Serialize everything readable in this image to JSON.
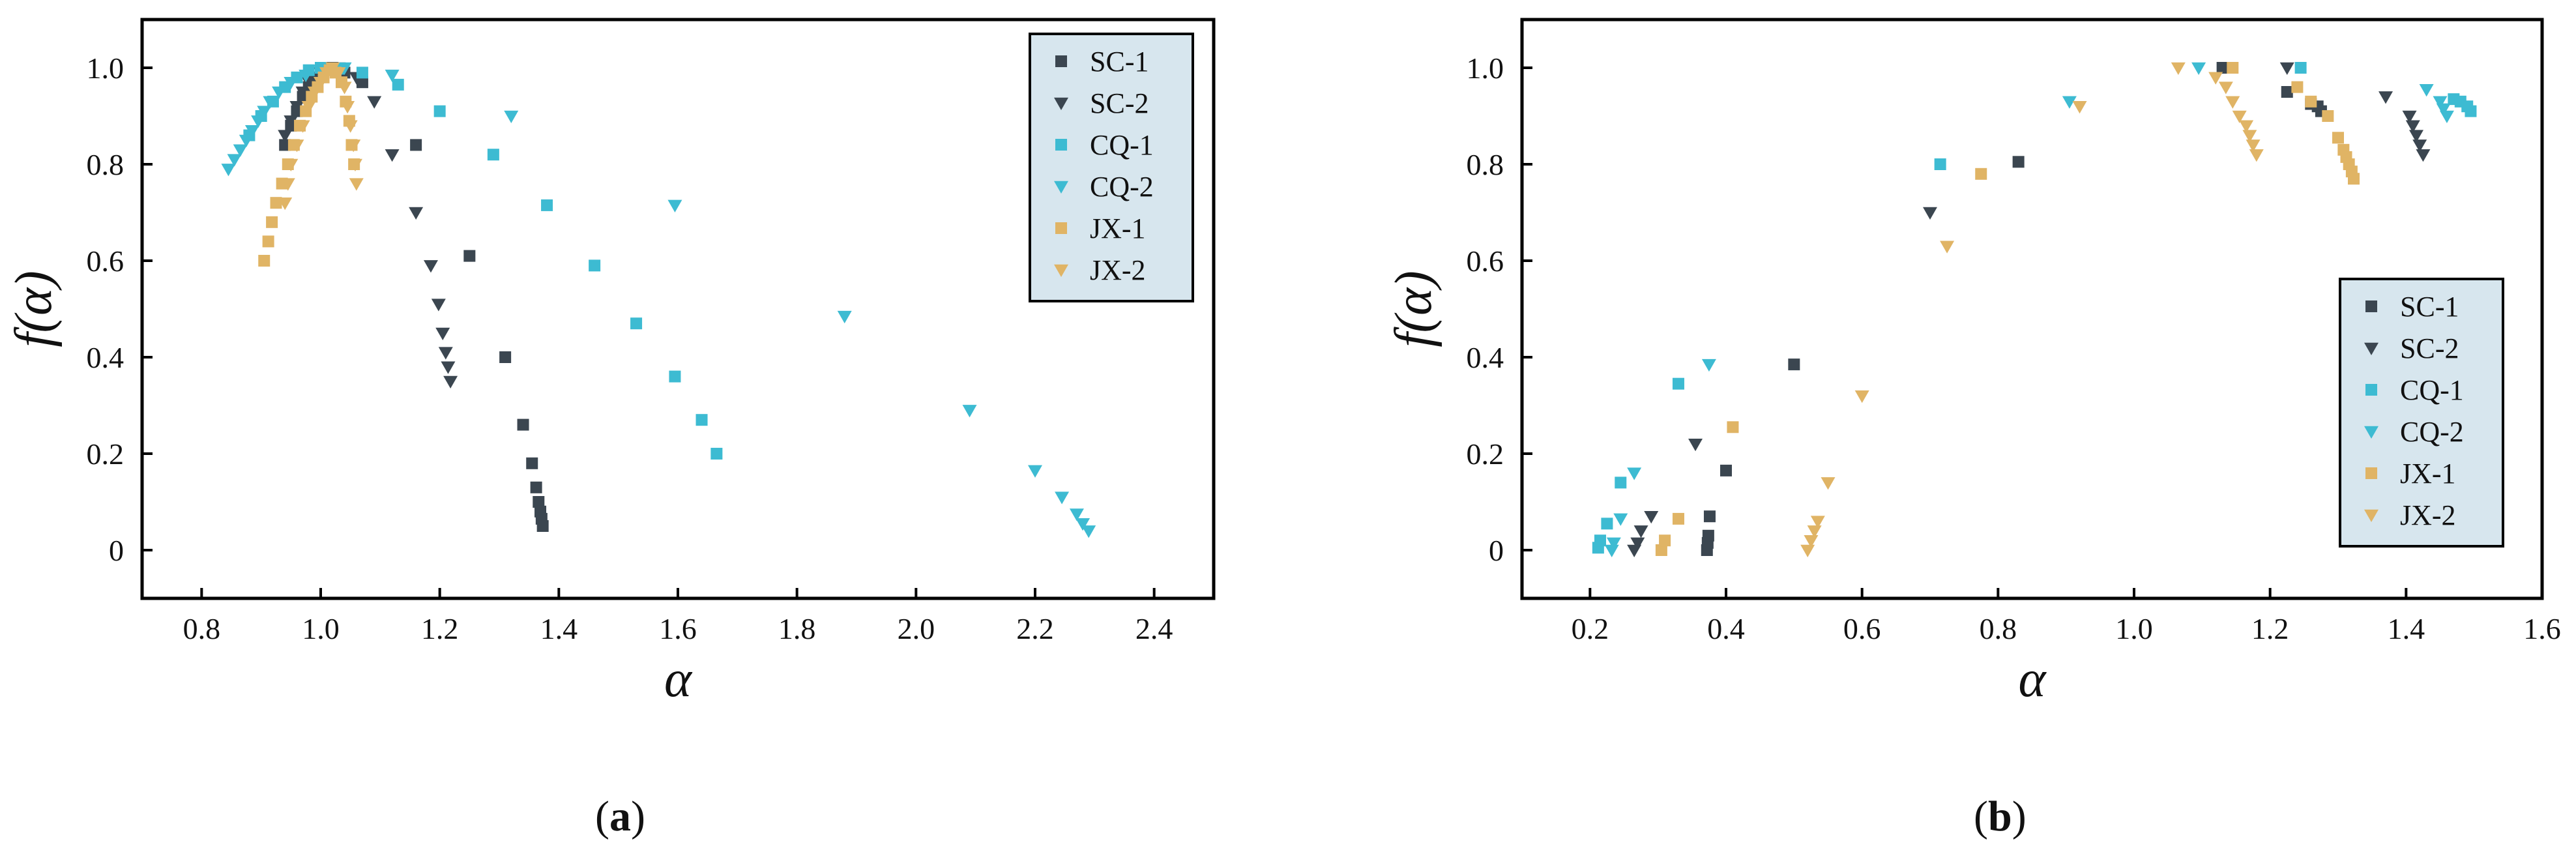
{
  "colors": {
    "SC": "#3b4650",
    "CQ": "#3dbbd2",
    "JX": "#e0b465",
    "legend_bg": "#d7e6ee",
    "frame": "#000000"
  },
  "chart_data": [
    {
      "panel": "(a)",
      "panel_letter": "a",
      "type": "scatter",
      "xlabel": "α",
      "ylabel": "f(α)",
      "xlim": [
        0.7,
        2.5
      ],
      "ylim": [
        -0.1,
        1.1
      ],
      "xticks": [
        "0.8",
        "1.0",
        "1.2",
        "1.4",
        "1.6",
        "1.8",
        "2.0",
        "2.2",
        "2.4"
      ],
      "yticks": [
        "0",
        "0.2",
        "0.4",
        "0.6",
        "0.8",
        "1.0"
      ],
      "legend_position": "top-right",
      "grid": false,
      "series": [
        {
          "name": "SC-1",
          "marker": "square",
          "color_key": "SC",
          "points": [
            [
              0.94,
              0.84
            ],
            [
              0.95,
              0.88
            ],
            [
              0.96,
              0.91
            ],
            [
              0.97,
              0.94
            ],
            [
              0.98,
              0.96
            ],
            [
              0.99,
              0.98
            ],
            [
              1.0,
              0.99
            ],
            [
              1.02,
              1.0
            ],
            [
              1.04,
              0.99
            ],
            [
              1.07,
              0.97
            ],
            [
              1.16,
              0.84
            ],
            [
              1.25,
              0.61
            ],
            [
              1.31,
              0.4
            ],
            [
              1.34,
              0.26
            ],
            [
              1.355,
              0.18
            ],
            [
              1.362,
              0.13
            ],
            [
              1.366,
              0.1
            ],
            [
              1.369,
              0.08
            ],
            [
              1.371,
              0.065
            ],
            [
              1.373,
              0.05
            ]
          ]
        },
        {
          "name": "SC-2",
          "marker": "triangle-down",
          "color_key": "SC",
          "points": [
            [
              0.94,
              0.86
            ],
            [
              0.95,
              0.89
            ],
            [
              0.96,
              0.92
            ],
            [
              0.97,
              0.95
            ],
            [
              0.98,
              0.97
            ],
            [
              1.0,
              0.99
            ],
            [
              1.03,
              1.0
            ],
            [
              1.06,
              0.98
            ],
            [
              1.09,
              0.93
            ],
            [
              1.12,
              0.82
            ],
            [
              1.16,
              0.7
            ],
            [
              1.185,
              0.59
            ],
            [
              1.198,
              0.51
            ],
            [
              1.205,
              0.45
            ],
            [
              1.21,
              0.41
            ],
            [
              1.214,
              0.38
            ],
            [
              1.218,
              0.35
            ]
          ]
        },
        {
          "name": "CQ-1",
          "marker": "square",
          "color_key": "CQ",
          "points": [
            [
              0.88,
              0.86
            ],
            [
              0.9,
              0.9
            ],
            [
              0.92,
              0.93
            ],
            [
              0.94,
              0.96
            ],
            [
              0.96,
              0.98
            ],
            [
              0.98,
              0.995
            ],
            [
              1.0,
              1.0
            ],
            [
              1.03,
              0.998
            ],
            [
              1.07,
              0.99
            ],
            [
              1.13,
              0.965
            ],
            [
              1.2,
              0.91
            ],
            [
              1.29,
              0.82
            ],
            [
              1.38,
              0.715
            ],
            [
              1.46,
              0.59
            ],
            [
              1.53,
              0.47
            ],
            [
              1.595,
              0.36
            ],
            [
              1.64,
              0.27
            ],
            [
              1.665,
              0.2
            ]
          ]
        },
        {
          "name": "CQ-2",
          "marker": "triangle-down",
          "color_key": "CQ",
          "points": [
            [
              0.845,
              0.79
            ],
            [
              0.855,
              0.81
            ],
            [
              0.865,
              0.83
            ],
            [
              0.875,
              0.85
            ],
            [
              0.885,
              0.87
            ],
            [
              0.895,
              0.89
            ],
            [
              0.905,
              0.91
            ],
            [
              0.915,
              0.93
            ],
            [
              0.93,
              0.95
            ],
            [
              0.95,
              0.97
            ],
            [
              0.975,
              0.985
            ],
            [
              1.0,
              0.995
            ],
            [
              1.04,
              1.0
            ],
            [
              1.12,
              0.985
            ],
            [
              1.32,
              0.9
            ],
            [
              1.595,
              0.715
            ],
            [
              1.88,
              0.485
            ],
            [
              2.09,
              0.29
            ],
            [
              2.2,
              0.165
            ],
            [
              2.245,
              0.11
            ],
            [
              2.27,
              0.075
            ],
            [
              2.28,
              0.055
            ],
            [
              2.29,
              0.04
            ]
          ]
        },
        {
          "name": "JX-1",
          "marker": "square",
          "color_key": "JX",
          "points": [
            [
              0.905,
              0.6
            ],
            [
              0.912,
              0.64
            ],
            [
              0.918,
              0.68
            ],
            [
              0.925,
              0.72
            ],
            [
              0.935,
              0.76
            ],
            [
              0.945,
              0.8
            ],
            [
              0.955,
              0.84
            ],
            [
              0.965,
              0.88
            ],
            [
              0.975,
              0.91
            ],
            [
              0.985,
              0.94
            ],
            [
              0.995,
              0.96
            ],
            [
              1.005,
              0.98
            ],
            [
              1.015,
              0.995
            ],
            [
              1.025,
              0.99
            ],
            [
              1.035,
              0.97
            ],
            [
              1.042,
              0.93
            ],
            [
              1.048,
              0.89
            ],
            [
              1.052,
              0.84
            ],
            [
              1.056,
              0.8
            ]
          ]
        },
        {
          "name": "JX-2",
          "marker": "triangle-down",
          "color_key": "JX",
          "points": [
            [
              0.94,
              0.72
            ],
            [
              0.945,
              0.76
            ],
            [
              0.95,
              0.8
            ],
            [
              0.96,
              0.84
            ],
            [
              0.97,
              0.88
            ],
            [
              0.98,
              0.92
            ],
            [
              0.99,
              0.95
            ],
            [
              1.0,
              0.97
            ],
            [
              1.01,
              0.99
            ],
            [
              1.02,
              1.0
            ],
            [
              1.03,
              0.99
            ],
            [
              1.04,
              0.96
            ],
            [
              1.045,
              0.92
            ],
            [
              1.05,
              0.88
            ],
            [
              1.055,
              0.84
            ],
            [
              1.058,
              0.8
            ],
            [
              1.06,
              0.76
            ]
          ]
        }
      ]
    },
    {
      "panel": "(b)",
      "panel_letter": "b",
      "type": "scatter",
      "xlabel": "α",
      "ylabel": "f(α)",
      "xlim": [
        0.1,
        1.6
      ],
      "ylim": [
        -0.1,
        1.1
      ],
      "xticks": [
        "0.2",
        "0.4",
        "0.6",
        "0.8",
        "1.0",
        "1.2",
        "1.4",
        "1.6"
      ],
      "yticks": [
        "0",
        "0.2",
        "0.4",
        "0.6",
        "0.8",
        "1.0"
      ],
      "legend_position": "lower-right",
      "grid": false,
      "series": [
        {
          "name": "SC-1",
          "marker": "square",
          "color_key": "SC",
          "points": [
            [
              0.372,
              0.0
            ],
            [
              0.373,
              0.015
            ],
            [
              0.374,
              0.03
            ],
            [
              0.376,
              0.07
            ],
            [
              0.4,
              0.165
            ],
            [
              0.5,
              0.385
            ],
            [
              0.83,
              0.805
            ],
            [
              1.13,
              1.0
            ],
            [
              1.225,
              0.95
            ],
            [
              1.26,
              0.925
            ],
            [
              1.27,
              0.92
            ],
            [
              1.275,
              0.91
            ]
          ]
        },
        {
          "name": "SC-2",
          "marker": "triangle-down",
          "color_key": "SC",
          "points": [
            [
              0.265,
              0.0
            ],
            [
              0.27,
              0.015
            ],
            [
              0.275,
              0.04
            ],
            [
              0.29,
              0.07
            ],
            [
              0.355,
              0.22
            ],
            [
              0.7,
              0.7
            ],
            [
              1.225,
              1.0
            ],
            [
              1.37,
              0.94
            ],
            [
              1.405,
              0.9
            ],
            [
              1.41,
              0.88
            ],
            [
              1.415,
              0.86
            ],
            [
              1.42,
              0.84
            ],
            [
              1.425,
              0.82
            ]
          ]
        },
        {
          "name": "CQ-1",
          "marker": "square",
          "color_key": "CQ",
          "points": [
            [
              0.212,
              0.005
            ],
            [
              0.215,
              0.02
            ],
            [
              0.225,
              0.055
            ],
            [
              0.245,
              0.14
            ],
            [
              0.33,
              0.345
            ],
            [
              0.715,
              0.8
            ],
            [
              1.245,
              1.0
            ],
            [
              1.47,
              0.935
            ],
            [
              1.48,
              0.93
            ],
            [
              1.49,
              0.92
            ],
            [
              1.495,
              0.91
            ]
          ]
        },
        {
          "name": "CQ-2",
          "marker": "triangle-down",
          "color_key": "CQ",
          "points": [
            [
              0.232,
              0.0
            ],
            [
              0.235,
              0.015
            ],
            [
              0.245,
              0.065
            ],
            [
              0.265,
              0.16
            ],
            [
              0.375,
              0.385
            ],
            [
              0.905,
              0.93
            ],
            [
              1.095,
              1.0
            ],
            [
              1.43,
              0.955
            ],
            [
              1.45,
              0.93
            ],
            [
              1.455,
              0.915
            ],
            [
              1.46,
              0.9
            ]
          ]
        },
        {
          "name": "JX-1",
          "marker": "square",
          "color_key": "JX",
          "points": [
            [
              0.305,
              0.0
            ],
            [
              0.31,
              0.02
            ],
            [
              0.33,
              0.065
            ],
            [
              0.41,
              0.255
            ],
            [
              0.775,
              0.78
            ],
            [
              1.145,
              1.0
            ],
            [
              1.24,
              0.96
            ],
            [
              1.26,
              0.93
            ],
            [
              1.285,
              0.9
            ],
            [
              1.3,
              0.855
            ],
            [
              1.308,
              0.83
            ],
            [
              1.312,
              0.815
            ],
            [
              1.316,
              0.8
            ],
            [
              1.32,
              0.785
            ],
            [
              1.323,
              0.77
            ]
          ]
        },
        {
          "name": "JX-2",
          "marker": "triangle-down",
          "color_key": "JX",
          "points": [
            [
              0.52,
              0.0
            ],
            [
              0.525,
              0.02
            ],
            [
              0.53,
              0.04
            ],
            [
              0.535,
              0.06
            ],
            [
              0.55,
              0.14
            ],
            [
              0.6,
              0.32
            ],
            [
              0.725,
              0.63
            ],
            [
              0.92,
              0.92
            ],
            [
              1.065,
              1.0
            ],
            [
              1.12,
              0.98
            ],
            [
              1.135,
              0.96
            ],
            [
              1.145,
              0.93
            ],
            [
              1.155,
              0.9
            ],
            [
              1.165,
              0.88
            ],
            [
              1.17,
              0.86
            ],
            [
              1.175,
              0.84
            ],
            [
              1.18,
              0.82
            ]
          ]
        }
      ]
    }
  ]
}
